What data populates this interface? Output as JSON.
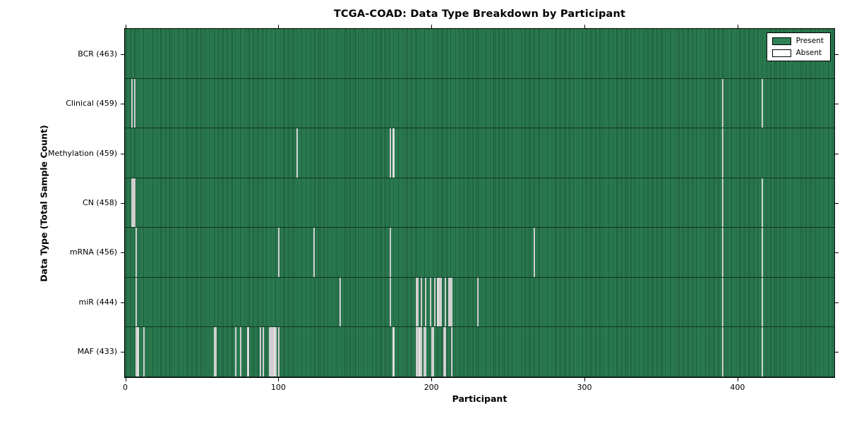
{
  "title": "TCGA-COAD: Data Type Breakdown by Participant",
  "xlabel": "Participant",
  "ylabel": "Data Type (Total Sample Count)",
  "legend": {
    "position": "upper right",
    "present_label": "Present",
    "absent_label": "Absent"
  },
  "colors": {
    "present": "#2e8256",
    "present_edge": "#1a5535",
    "absent": "#f2f2f2",
    "frame": "#000000",
    "background": "#ffffff"
  },
  "chart_data": {
    "type": "heatmap",
    "title": "TCGA-COAD: Data Type Breakdown by Participant",
    "xlabel": "Participant",
    "ylabel": "Data Type (Total Sample Count)",
    "legend_entries": [
      "Present",
      "Absent"
    ],
    "legend_position": "upper right",
    "grid": false,
    "x_range": [
      0,
      463
    ],
    "x_ticks": [
      0,
      100,
      200,
      300,
      400
    ],
    "total_participants": 463,
    "rows": [
      {
        "name": "BCR",
        "label": "BCR (463)",
        "present_count": 463,
        "absent_participants": []
      },
      {
        "name": "Clinical",
        "label": "Clinical (459)",
        "present_count": 459,
        "absent_participants": [
          4,
          6,
          390,
          416
        ]
      },
      {
        "name": "Methylation",
        "label": "Methylation (459)",
        "present_count": 459,
        "absent_participants": [
          112,
          173,
          175,
          390
        ]
      },
      {
        "name": "CN",
        "label": "CN (458)",
        "present_count": 458,
        "absent_participants": [
          4,
          5,
          6,
          390,
          416
        ]
      },
      {
        "name": "mRNA",
        "label": "mRNA (456)",
        "present_count": 456,
        "absent_participants": [
          7,
          100,
          123,
          173,
          267,
          390,
          416
        ]
      },
      {
        "name": "miR",
        "label": "miR (444)",
        "present_count": 444,
        "absent_participants": [
          7,
          140,
          173,
          190,
          191,
          193,
          196,
          199,
          202,
          204,
          205,
          206,
          209,
          211,
          212,
          213,
          230,
          390,
          416
        ]
      },
      {
        "name": "MAF",
        "label": "MAF (433)",
        "present_count": 433,
        "absent_participants": [
          7,
          8,
          12,
          58,
          59,
          72,
          75,
          80,
          88,
          90,
          94,
          95,
          96,
          97,
          98,
          100,
          175,
          190,
          191,
          192,
          193,
          195,
          196,
          200,
          201,
          208,
          209,
          213,
          390,
          416
        ]
      }
    ]
  }
}
